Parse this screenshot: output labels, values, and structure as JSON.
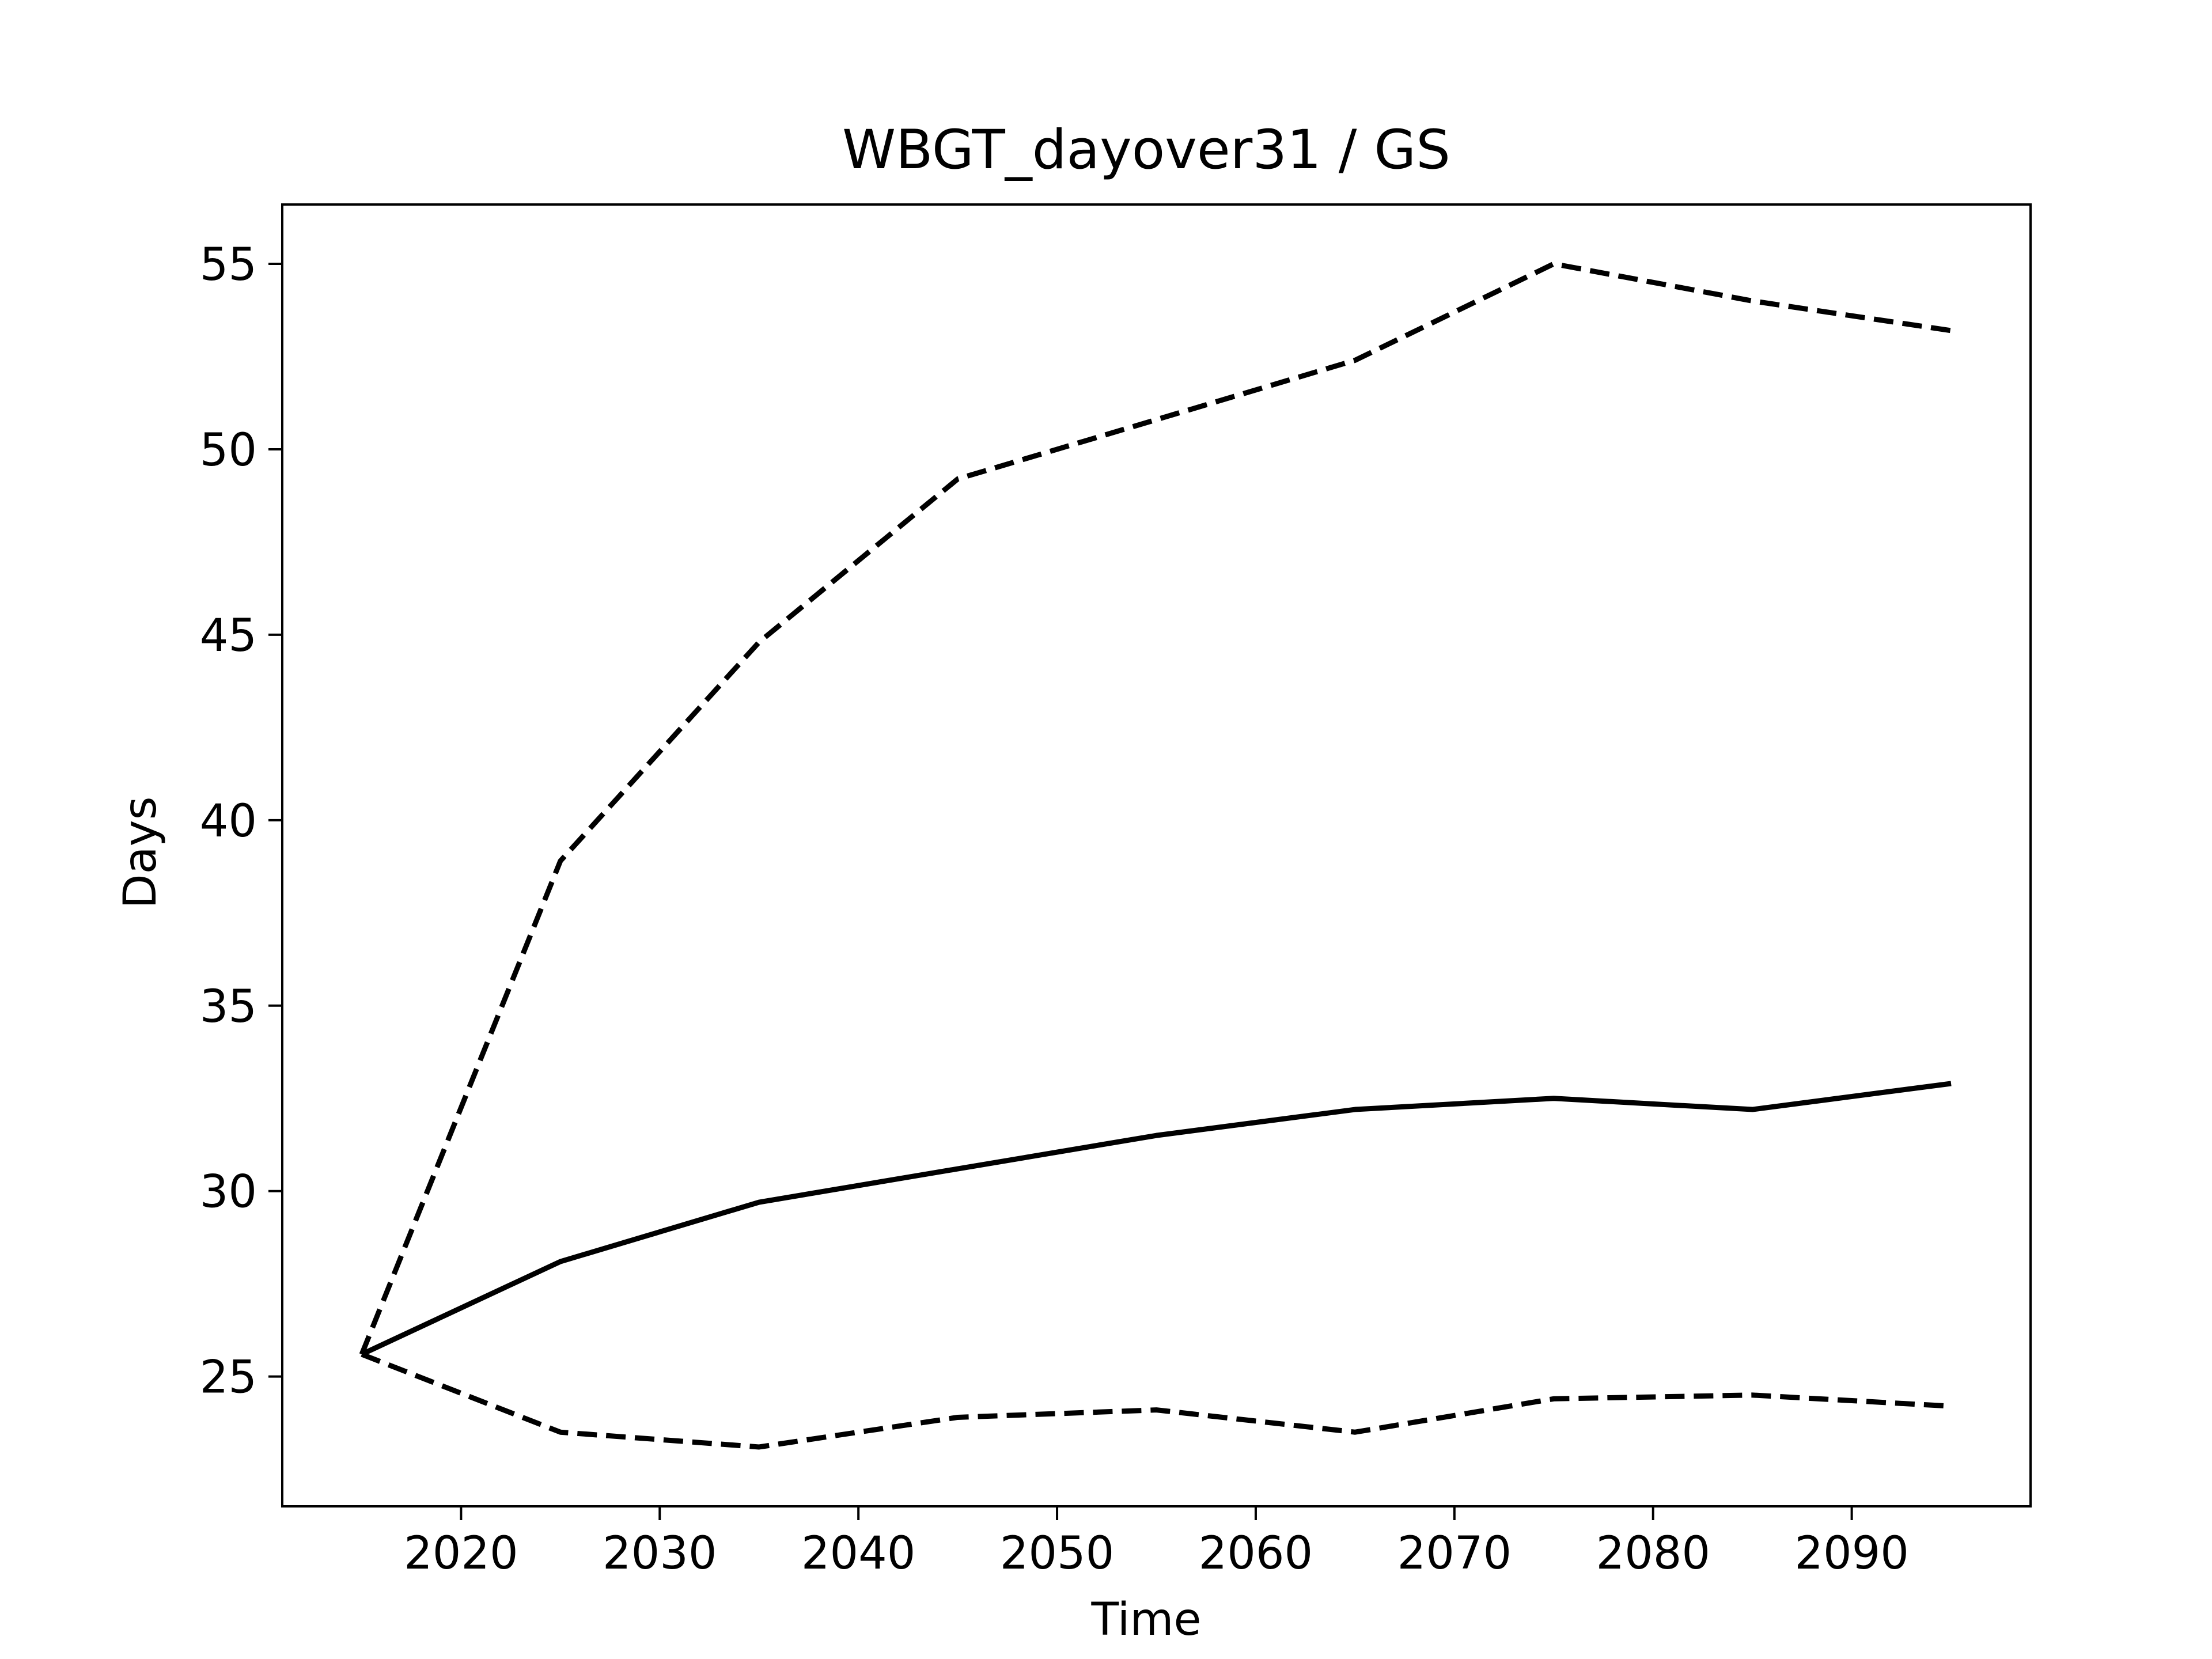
{
  "chart_data": {
    "type": "line",
    "title": "WBGT_dayover31 / GS",
    "xlabel": "Time",
    "ylabel": "Days",
    "xlim": [
      2011,
      2099
    ],
    "ylim": [
      21.5,
      56.6
    ],
    "xticks": [
      2020,
      2030,
      2040,
      2050,
      2060,
      2070,
      2080,
      2090
    ],
    "yticks": [
      25,
      30,
      35,
      40,
      45,
      50,
      55
    ],
    "grid": false,
    "legend": "none",
    "x": [
      2015,
      2025,
      2035,
      2045,
      2055,
      2065,
      2075,
      2085,
      2095
    ],
    "series": [
      {
        "style": "dashed",
        "color": "#000000",
        "values": [
          25.6,
          38.9,
          44.8,
          49.2,
          50.8,
          52.4,
          55.0,
          54.0,
          53.2
        ]
      },
      {
        "style": "solid",
        "color": "#000000",
        "values": [
          25.6,
          28.1,
          29.7,
          30.6,
          31.5,
          32.2,
          32.5,
          32.2,
          32.9
        ]
      },
      {
        "style": "dashed",
        "color": "#000000",
        "values": [
          25.6,
          23.5,
          23.1,
          23.9,
          24.1,
          23.5,
          24.4,
          24.5,
          24.2
        ]
      }
    ]
  }
}
